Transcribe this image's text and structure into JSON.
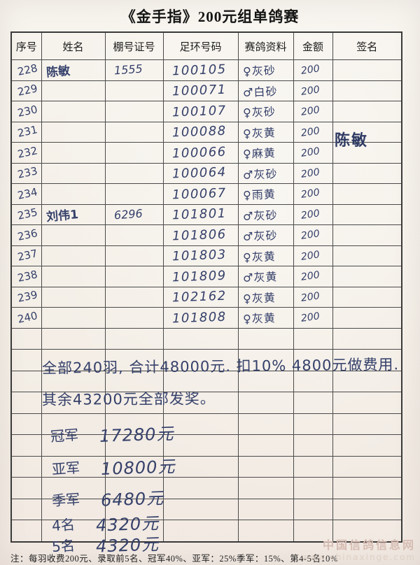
{
  "page": {
    "title": "《金手指》200元组单鸽赛"
  },
  "colors": {
    "paper": "#f5f0e8",
    "ink_handwriting": "#35406a",
    "grid_line": "#4a4a4a",
    "printed_text": "#1c1c1c",
    "watermark": "#d6bcb2"
  },
  "table": {
    "headers": [
      "序号",
      "姓名",
      "棚号证号",
      "足环号码",
      "赛鸽资料",
      "金额",
      "签名"
    ],
    "rows": [
      {
        "no": "228",
        "name": "陈敏",
        "loft": "1555",
        "ring": "100105",
        "info": "♀灰砂",
        "amount": "200",
        "sign": ""
      },
      {
        "no": "229",
        "name": "",
        "loft": "",
        "ring": "100071",
        "info": "♂白砂",
        "amount": "200",
        "sign": ""
      },
      {
        "no": "230",
        "name": "",
        "loft": "",
        "ring": "100107",
        "info": "♀灰砂",
        "amount": "200",
        "sign": ""
      },
      {
        "no": "231",
        "name": "",
        "loft": "",
        "ring": "100088",
        "info": "♀灰黄",
        "amount": "200",
        "sign": ""
      },
      {
        "no": "232",
        "name": "",
        "loft": "",
        "ring": "100066",
        "info": "♀麻黄",
        "amount": "200",
        "sign": ""
      },
      {
        "no": "233",
        "name": "",
        "loft": "",
        "ring": "100064",
        "info": "♂灰砂",
        "amount": "200",
        "sign": ""
      },
      {
        "no": "234",
        "name": "",
        "loft": "",
        "ring": "100067",
        "info": "♀雨黄",
        "amount": "200",
        "sign": ""
      },
      {
        "no": "235",
        "name": "刘伟1",
        "loft": "6296",
        "ring": "101801",
        "info": "♂灰砂",
        "amount": "200",
        "sign": ""
      },
      {
        "no": "236",
        "name": "",
        "loft": "",
        "ring": "101806",
        "info": "♂灰砂",
        "amount": "200",
        "sign": ""
      },
      {
        "no": "237",
        "name": "",
        "loft": "",
        "ring": "101803",
        "info": "♀灰黄",
        "amount": "200",
        "sign": ""
      },
      {
        "no": "238",
        "name": "",
        "loft": "",
        "ring": "101809",
        "info": "♂灰黄",
        "amount": "200",
        "sign": ""
      },
      {
        "no": "239",
        "name": "",
        "loft": "",
        "ring": "102162",
        "info": "♀灰黄",
        "amount": "200",
        "sign": ""
      },
      {
        "no": "240",
        "name": "",
        "loft": "",
        "ring": "101808",
        "info": "♀灰黄",
        "amount": "200",
        "sign": ""
      }
    ],
    "empty_row_count": 10,
    "signature_overlay": "陈敏"
  },
  "summary": {
    "line1": "全部240羽, 合计48000元. 扣10% 4800元做费用.",
    "line2": "其余43200元全部发奖。",
    "prizes": [
      {
        "label": "冠军",
        "value": "17280元"
      },
      {
        "label": "亚军",
        "value": "10800元"
      },
      {
        "label": "季军",
        "value": "6480元"
      },
      {
        "label": "4名",
        "value": "4320元"
      },
      {
        "label": "5名",
        "value": "4320元"
      }
    ]
  },
  "footer": {
    "note": "注：每羽收费200元、录取前5名、冠军40%、亚军：25%季军：15%、第4-5名10%"
  },
  "watermark": {
    "line1": "中国信鸽信息网",
    "line2": "www.chinaxinge.com"
  }
}
